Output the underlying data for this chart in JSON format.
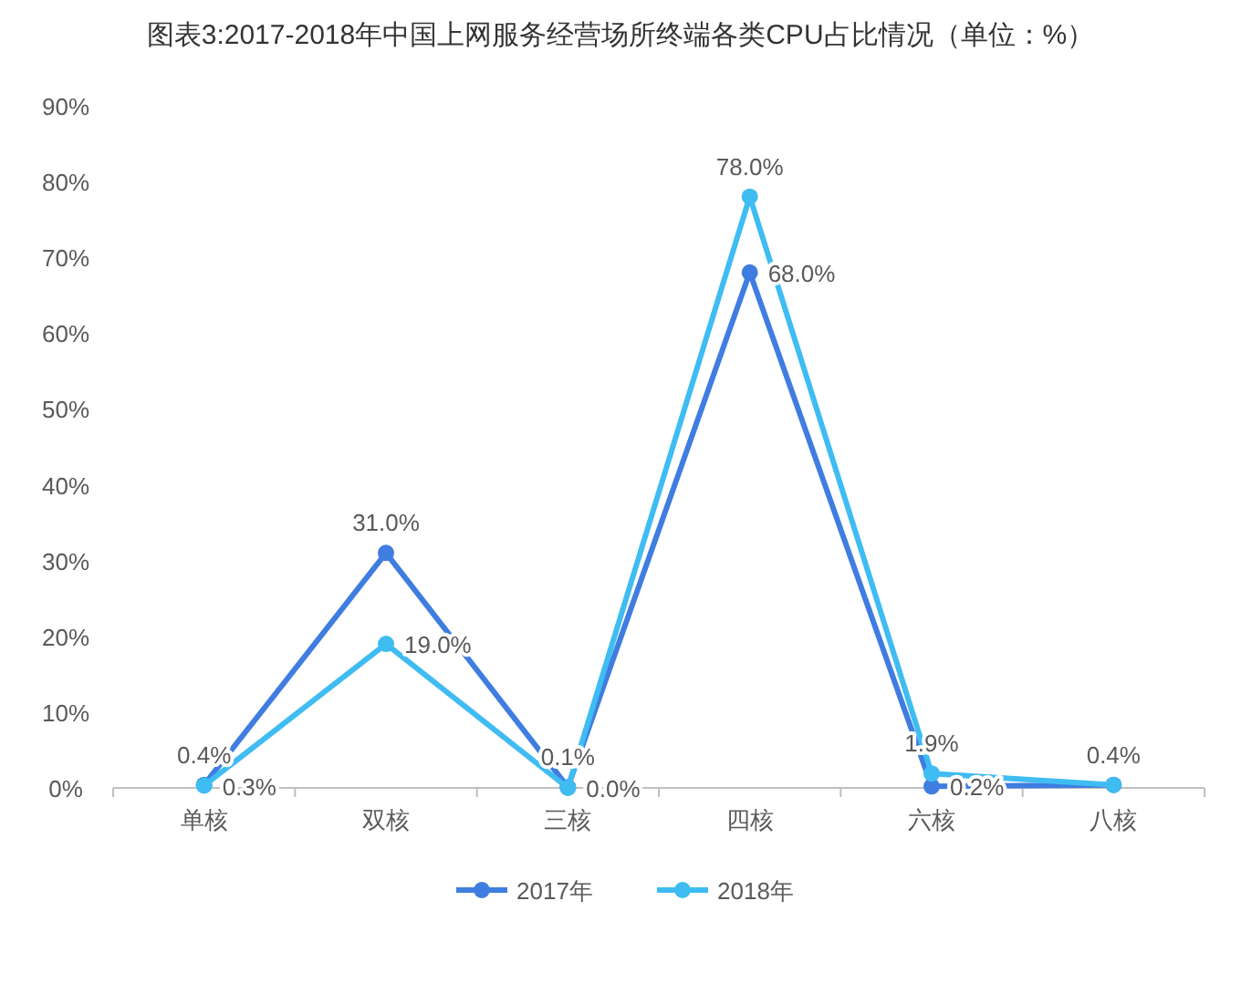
{
  "chart_data": {
    "type": "line",
    "title": "图表3:2017-2018年中国上网服务经营场所终端各类CPU占比情况（单位：%）",
    "categories": [
      "单核",
      "双核",
      "三核",
      "四核",
      "六核",
      "八核"
    ],
    "series": [
      {
        "name": "2017年",
        "color": "#3f7de0",
        "values": [
          0.4,
          31.0,
          0.1,
          68.0,
          0.2,
          0.4
        ],
        "value_labels": [
          "0.4%",
          "31.0%",
          "0.1%",
          "68.0%",
          "0.2%",
          "0.4%"
        ]
      },
      {
        "name": "2018年",
        "color": "#3fbcf2",
        "values": [
          0.3,
          19.0,
          0.0,
          78.0,
          1.9,
          0.4
        ],
        "value_labels": [
          "0.3%",
          "19.0%",
          "0.0%",
          "78.0%",
          "1.9%",
          null
        ]
      }
    ],
    "ylim": [
      0,
      90
    ],
    "yticks": [
      {
        "value": 0,
        "label": "0%"
      },
      {
        "value": 10,
        "label": "10%"
      },
      {
        "value": 20,
        "label": "20%"
      },
      {
        "value": 30,
        "label": "30%"
      },
      {
        "value": 40,
        "label": "40%"
      },
      {
        "value": 50,
        "label": "50%"
      },
      {
        "value": 60,
        "label": "60%"
      },
      {
        "value": 70,
        "label": "70%"
      },
      {
        "value": 80,
        "label": "80%"
      },
      {
        "value": 90,
        "label": "90%"
      }
    ],
    "legend": "bottom",
    "marker": "circle",
    "line_style": "solid",
    "grid": false
  }
}
